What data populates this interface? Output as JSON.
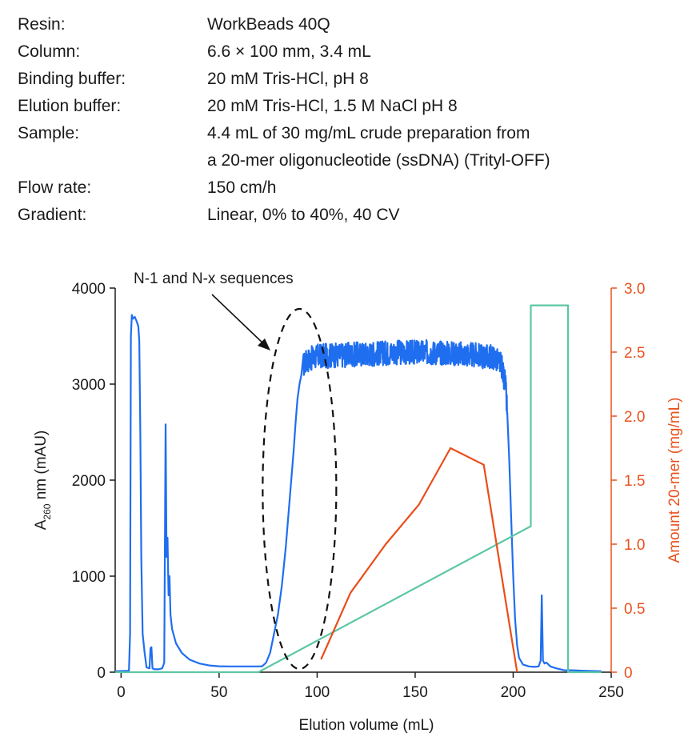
{
  "conditions": [
    {
      "label": "Resin:",
      "values": [
        "WorkBeads 40Q"
      ]
    },
    {
      "label": "Column:",
      "values": [
        "6.6 × 100 mm, 3.4 mL"
      ]
    },
    {
      "label": "Binding buffer:",
      "values": [
        "20 mM Tris-HCl, pH 8"
      ]
    },
    {
      "label": "Elution buffer:",
      "values": [
        "20 mM Tris-HCl, 1.5 M NaCl pH 8"
      ]
    },
    {
      "label": "Sample:",
      "values": [
        "4.4 mL of 30 mg/mL crude preparation from",
        "a 20-mer oligonucleotide (ssDNA) (Trityl-OFF)"
      ]
    },
    {
      "label": "Flow rate:",
      "values": [
        "150 cm/h"
      ]
    },
    {
      "label": "Gradient:",
      "values": [
        "Linear, 0% to 40%, 40 CV"
      ]
    }
  ],
  "chart_data": {
    "type": "line",
    "xlabel": "Elution volume (mL)",
    "ylabel_main": "A",
    "ylabel_sub": "260",
    "ylabel_rest": " nm (mAU)",
    "y2label": "Amount 20-mer (mg/mL)",
    "xlim": [
      -3,
      250
    ],
    "ylim": [
      0,
      4000
    ],
    "y2lim": [
      0,
      3.0
    ],
    "xticks": [
      0,
      50,
      100,
      150,
      200,
      250
    ],
    "yticks": [
      0,
      1000,
      2000,
      3000,
      4000
    ],
    "y2ticks": [
      "0",
      "0.5",
      "1.0",
      "1.5",
      "2.0",
      "2.5",
      "3.0"
    ],
    "annotation": "N-1 and N-x sequences",
    "colors": {
      "a260": "#1f6ef0",
      "gradient": "#5cc7a4",
      "amount": "#ea4d1a",
      "axis": "#1a1a1a",
      "right_axis": "#e8521e"
    },
    "series": [
      {
        "axis": "left",
        "color": "#1f6ef0",
        "noisy_range": [
          93,
          197
        ],
        "x": [
          -3,
          4,
          4.6,
          5,
          5.5,
          6,
          7,
          8,
          8.8,
          9.3,
          9.8,
          10.3,
          11,
          12,
          13,
          14.5,
          15,
          15.5,
          16,
          17,
          19,
          21,
          22,
          22.7,
          23.2,
          23.7,
          24.2,
          24.7,
          25.2,
          26,
          28,
          31,
          35,
          40,
          45,
          50,
          55,
          60,
          65,
          70,
          72,
          74,
          76,
          78,
          80,
          82,
          84,
          86,
          88,
          89,
          90,
          91,
          92,
          93,
          95,
          100,
          110,
          120,
          130,
          140,
          150,
          160,
          170,
          180,
          190,
          194,
          196,
          197,
          198,
          199,
          200,
          201,
          202,
          203,
          205,
          208,
          211,
          213,
          214,
          214.6,
          215.2,
          216,
          217,
          219,
          222,
          226,
          230,
          236,
          245
        ],
        "y": [
          10,
          15,
          400,
          3500,
          3720,
          3680,
          3700,
          3650,
          3600,
          3450,
          2500,
          1200,
          400,
          200,
          50,
          40,
          250,
          260,
          40,
          30,
          30,
          40,
          100,
          2580,
          1200,
          1400,
          800,
          1000,
          600,
          450,
          300,
          200,
          130,
          90,
          70,
          62,
          60,
          60,
          60,
          60,
          62,
          100,
          200,
          400,
          600,
          900,
          1300,
          1800,
          2300,
          2600,
          2850,
          3000,
          3100,
          3200,
          3250,
          3290,
          3300,
          3310,
          3320,
          3330,
          3330,
          3330,
          3320,
          3300,
          3280,
          3200,
          3000,
          2700,
          2200,
          1600,
          1000,
          550,
          280,
          150,
          80,
          60,
          55,
          60,
          120,
          800,
          120,
          90,
          100,
          60,
          40,
          20,
          20,
          15,
          10
        ]
      },
      {
        "axis": "left",
        "color": "#5cc7a4",
        "x": [
          -3,
          70,
          209,
          209,
          228,
          228,
          245
        ],
        "y": [
          0,
          0,
          1520,
          3820,
          3820,
          0,
          0
        ]
      },
      {
        "axis": "right",
        "color": "#ea4d1a",
        "x": [
          102,
          117,
          135,
          152,
          168,
          185,
          202
        ],
        "y": [
          0.1,
          0.62,
          1.0,
          1.31,
          1.75,
          1.62,
          0.0
        ]
      }
    ]
  }
}
